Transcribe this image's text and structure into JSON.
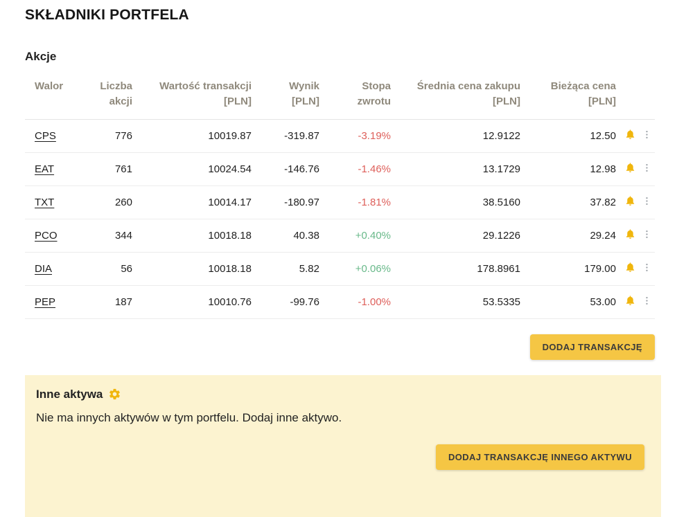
{
  "page": {
    "title": "SKŁADNIKI PORTFELA"
  },
  "stocks": {
    "section_title": "Akcje",
    "headers": {
      "walor": {
        "line1": "Walor"
      },
      "liczba": {
        "line1": "Liczba",
        "line2": "akcji"
      },
      "wartosc": {
        "line1": "Wartość transakcji",
        "line2": "[PLN]"
      },
      "wynik": {
        "line1": "Wynik",
        "line2": "[PLN]"
      },
      "stopa": {
        "line1": "Stopa",
        "line2": "zwrotu"
      },
      "srednia": {
        "line1": "Średnia cena zakupu",
        "line2": "[PLN]"
      },
      "biezaca": {
        "line1": "Bieżąca cena",
        "line2": "[PLN]"
      }
    },
    "rows": [
      {
        "ticker": "CPS",
        "shares": "776",
        "transaction_value": "10019.87",
        "result": "-319.87",
        "return_rate": "-3.19%",
        "trend": "negative",
        "avg_purchase_price": "12.9122",
        "current_price": "12.50"
      },
      {
        "ticker": "EAT",
        "shares": "761",
        "transaction_value": "10024.54",
        "result": "-146.76",
        "return_rate": "-1.46%",
        "trend": "negative",
        "avg_purchase_price": "13.1729",
        "current_price": "12.98"
      },
      {
        "ticker": "TXT",
        "shares": "260",
        "transaction_value": "10014.17",
        "result": "-180.97",
        "return_rate": "-1.81%",
        "trend": "negative",
        "avg_purchase_price": "38.5160",
        "current_price": "37.82"
      },
      {
        "ticker": "PCO",
        "shares": "344",
        "transaction_value": "10018.18",
        "result": "40.38",
        "return_rate": "+0.40%",
        "trend": "positive",
        "avg_purchase_price": "29.1226",
        "current_price": "29.24"
      },
      {
        "ticker": "DIA",
        "shares": "56",
        "transaction_value": "10018.18",
        "result": "5.82",
        "return_rate": "+0.06%",
        "trend": "positive",
        "avg_purchase_price": "178.8961",
        "current_price": "179.00"
      },
      {
        "ticker": "PEP",
        "shares": "187",
        "transaction_value": "10010.76",
        "result": "-99.76",
        "return_rate": "-1.00%",
        "trend": "negative",
        "avg_purchase_price": "53.5335",
        "current_price": "53.00"
      }
    ],
    "add_transaction_label": "DODAJ TRANSAKCJĘ"
  },
  "other_assets": {
    "section_title": "Inne aktywa",
    "empty_message": "Nie ma innych aktywów w tym portfelu. Dodaj inne aktywo.",
    "add_transaction_label": "DODAJ TRANSAKCJĘ INNEGO AKTYWU"
  },
  "icons": {
    "bell": "alert-bell-icon",
    "kebab": "row-menu-icon",
    "gear": "settings-gear-icon"
  },
  "colors": {
    "accent": "#f5c644",
    "panel_bg": "#fcf3d0",
    "positive": "#69b98a",
    "negative": "#de5f5a",
    "bell": "#f0b60d",
    "header_text": "#8f897c"
  }
}
